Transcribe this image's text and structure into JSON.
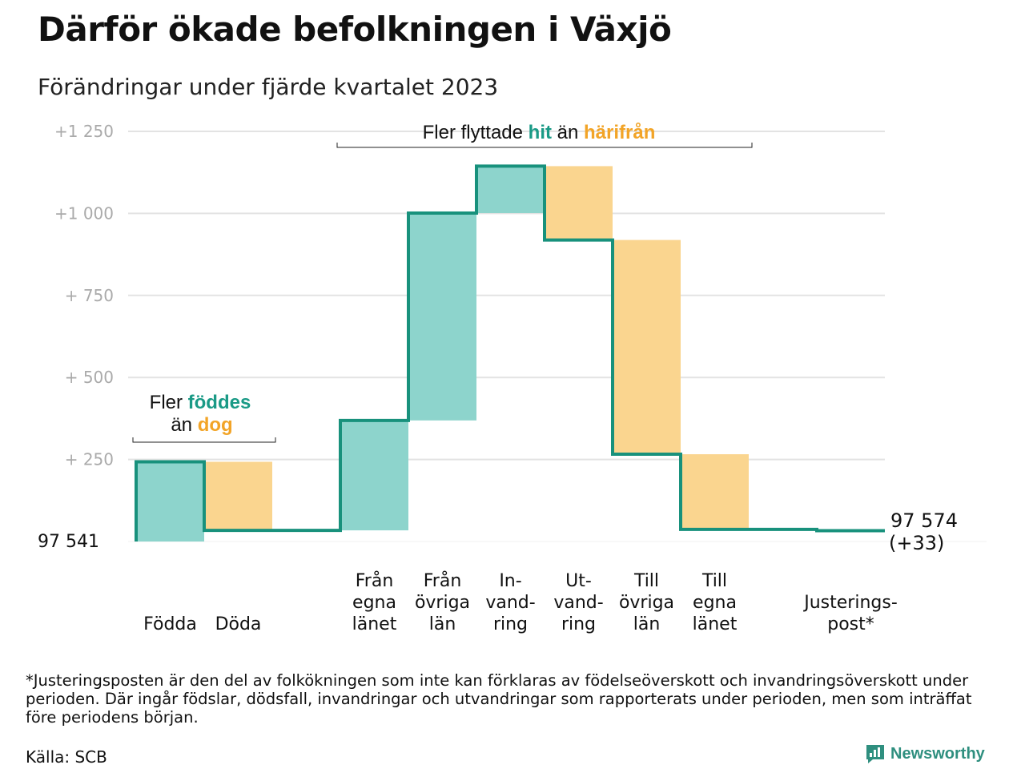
{
  "title": "Därför ökade befolkningen i Växjö",
  "subtitle": "Förändringar under fjärde kvartalet 2023",
  "colors": {
    "increase": "#8dd4cc",
    "decrease": "#fad58f",
    "line": "#18917c",
    "accent_green": "#1a9a86",
    "accent_orange": "#f2a427",
    "grid": "#e3e3e3",
    "tick": "#aaaaaa"
  },
  "annotations": {
    "births": {
      "prefix": "Fler",
      "green_word": "föddes",
      "middle": "än",
      "orange_word": "dog"
    },
    "migration": {
      "prefix": "Fler flyttade",
      "green_word": "hit",
      "middle": "än",
      "orange_word": "härifrån"
    }
  },
  "chart_data": {
    "type": "waterfall",
    "baseline_label": "97  541",
    "start_value": 97541,
    "end_label": "97 574",
    "end_change_label": "(+33)",
    "y_ticks": [
      "+1  250",
      "+1  000",
      "+  750",
      "+  500",
      "+  250"
    ],
    "y_tick_values": [
      1250,
      1000,
      750,
      500,
      250
    ],
    "ylim": [
      0,
      1250
    ],
    "steps": [
      {
        "category": [
          "Födda"
        ],
        "value": 243,
        "kind": "increase"
      },
      {
        "category": [
          "Döda"
        ],
        "value": -209,
        "kind": "decrease"
      },
      {
        "category": [],
        "value": 0,
        "kind": "gap"
      },
      {
        "category": [
          "Från",
          "egna",
          "länet"
        ],
        "value": 335,
        "kind": "increase"
      },
      {
        "category": [
          "Från",
          "övriga",
          "län"
        ],
        "value": 632,
        "kind": "increase"
      },
      {
        "category": [
          "In-",
          "vand-",
          "ring"
        ],
        "value": 143,
        "kind": "increase"
      },
      {
        "category": [
          "Ut-",
          "vand-",
          "ring"
        ],
        "value": -225,
        "kind": "decrease"
      },
      {
        "category": [
          "Till",
          "övriga",
          "län"
        ],
        "value": -653,
        "kind": "decrease"
      },
      {
        "category": [
          "Till",
          "egna",
          "länet"
        ],
        "value": -229,
        "kind": "decrease"
      },
      {
        "category": [],
        "value": 0,
        "kind": "gap"
      },
      {
        "category": [
          "Justerings-",
          "post*"
        ],
        "value": -4,
        "kind": "adjustment"
      }
    ]
  },
  "footnote": "*Justeringsposten är den del av folkökningen som inte kan förklaras av födelseöverskott och invandringsöverskott under perioden. Där ingår födslar, dödsfall, invandringar och utvandringar som rapporterats under perioden, men som inträffat före periodens början.",
  "source": "Källa: SCB",
  "brand": {
    "name": "Newsworthy",
    "icon": "newsworthy-logo-icon"
  }
}
